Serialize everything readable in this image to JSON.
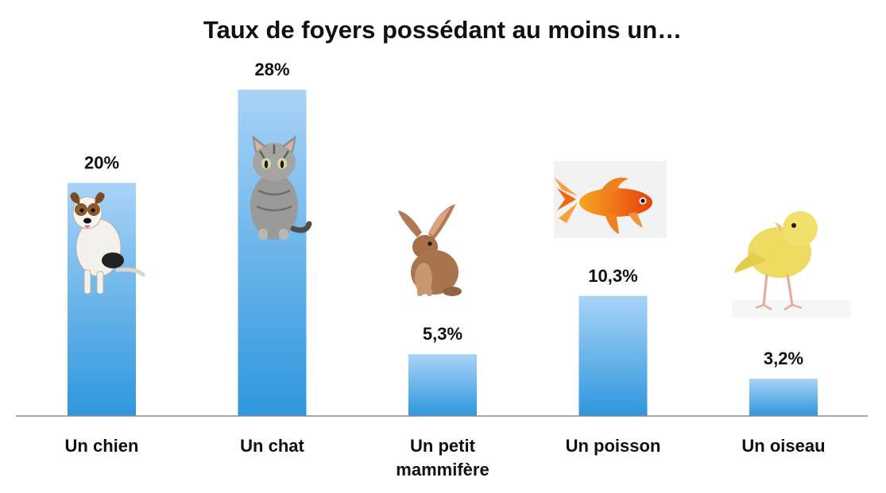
{
  "chart_data": {
    "type": "bar",
    "title": "Taux de foyers possédant au moins un…",
    "categories": [
      "Un chien",
      "Un chat",
      "Un petit mammifère",
      "Un poisson",
      "Un oiseau"
    ],
    "values": [
      20,
      28,
      5.3,
      10.3,
      3.2
    ],
    "value_labels": [
      "20%",
      "28%",
      "5,3%",
      "10,3%",
      "3,2%"
    ],
    "xlabel": "",
    "ylabel": "",
    "ylim": [
      0,
      28
    ],
    "grid": false,
    "legend": "none",
    "bar_color_top": "#a9d3f7",
    "bar_color_bottom": "#2e97dd",
    "axis_color": "#8c8c8c",
    "icons": [
      "dog-icon",
      "cat-icon",
      "rabbit-icon",
      "goldfish-icon",
      "canary-icon"
    ]
  }
}
